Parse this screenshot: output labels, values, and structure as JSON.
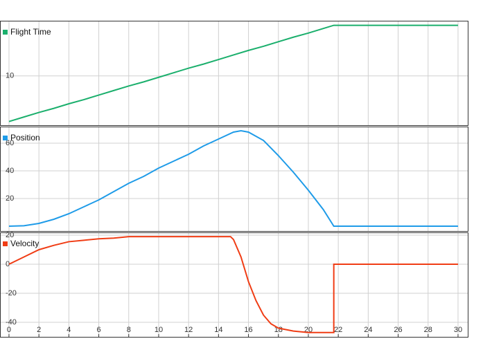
{
  "chart_data": [
    {
      "type": "line",
      "xlim": [
        -0.6,
        30.65
      ],
      "ylim": [
        -0.8,
        22.1
      ],
      "yticks": [
        10
      ],
      "grid": true,
      "x": [
        0,
        1,
        2,
        3,
        4,
        5,
        6,
        7,
        8,
        9,
        10,
        11,
        12,
        13,
        14,
        15,
        16,
        17,
        18,
        19,
        20,
        21,
        21.7,
        22,
        23,
        24,
        25,
        26,
        27,
        28,
        29,
        30
      ],
      "series": [
        {
          "name": "Flight Time",
          "color": "#1aaf6c",
          "values": [
            0,
            1,
            2,
            2.9,
            3.9,
            4.8,
            5.8,
            6.8,
            7.8,
            8.7,
            9.7,
            10.7,
            11.7,
            12.6,
            13.6,
            14.6,
            15.6,
            16.5,
            17.5,
            18.5,
            19.4,
            20.4,
            21.1,
            21.1,
            21.1,
            21.1,
            21.1,
            21.1,
            21.1,
            21.1,
            21.1,
            21.1
          ]
        }
      ]
    },
    {
      "type": "line",
      "xlim": [
        -0.6,
        30.65
      ],
      "ylim": [
        -3.5,
        72
      ],
      "yticks": [
        20,
        40,
        60
      ],
      "grid": true,
      "x": [
        0,
        1,
        2,
        3,
        4,
        5,
        6,
        7,
        8,
        9,
        10,
        11,
        12,
        13,
        14,
        15,
        15.5,
        16,
        17,
        18,
        19,
        20,
        21,
        21.7,
        22,
        30
      ],
      "series": [
        {
          "name": "Position",
          "color": "#1e9be8",
          "values": [
            0,
            0.3,
            2,
            5,
            9,
            14,
            19,
            25,
            31,
            36,
            42,
            47,
            52,
            58,
            63,
            68,
            69,
            68,
            62,
            51,
            39,
            26,
            12,
            0,
            0,
            0
          ]
        }
      ]
    },
    {
      "type": "line",
      "xlim": [
        -0.6,
        30.65
      ],
      "ylim": [
        -50,
        21.9
      ],
      "yticks": [
        -40,
        -20,
        0,
        20
      ],
      "grid": true,
      "xticks": [
        0,
        2,
        4,
        6,
        8,
        10,
        12,
        14,
        16,
        18,
        20,
        22,
        24,
        26,
        28,
        30
      ],
      "x": [
        0,
        1,
        2,
        3,
        4,
        5,
        6,
        7,
        8,
        9,
        14.8,
        15,
        15.5,
        16,
        16.5,
        17,
        17.5,
        18,
        19,
        20,
        21.7,
        21.7,
        30
      ],
      "series": [
        {
          "name": "Velocity",
          "color": "#f03c14",
          "values": [
            0,
            5,
            10,
            13,
            15.5,
            16.5,
            17.5,
            18,
            19,
            19,
            19,
            17,
            5,
            -12,
            -25,
            -35,
            -41,
            -44,
            -46,
            -47,
            -47,
            0,
            0
          ]
        }
      ]
    }
  ]
}
